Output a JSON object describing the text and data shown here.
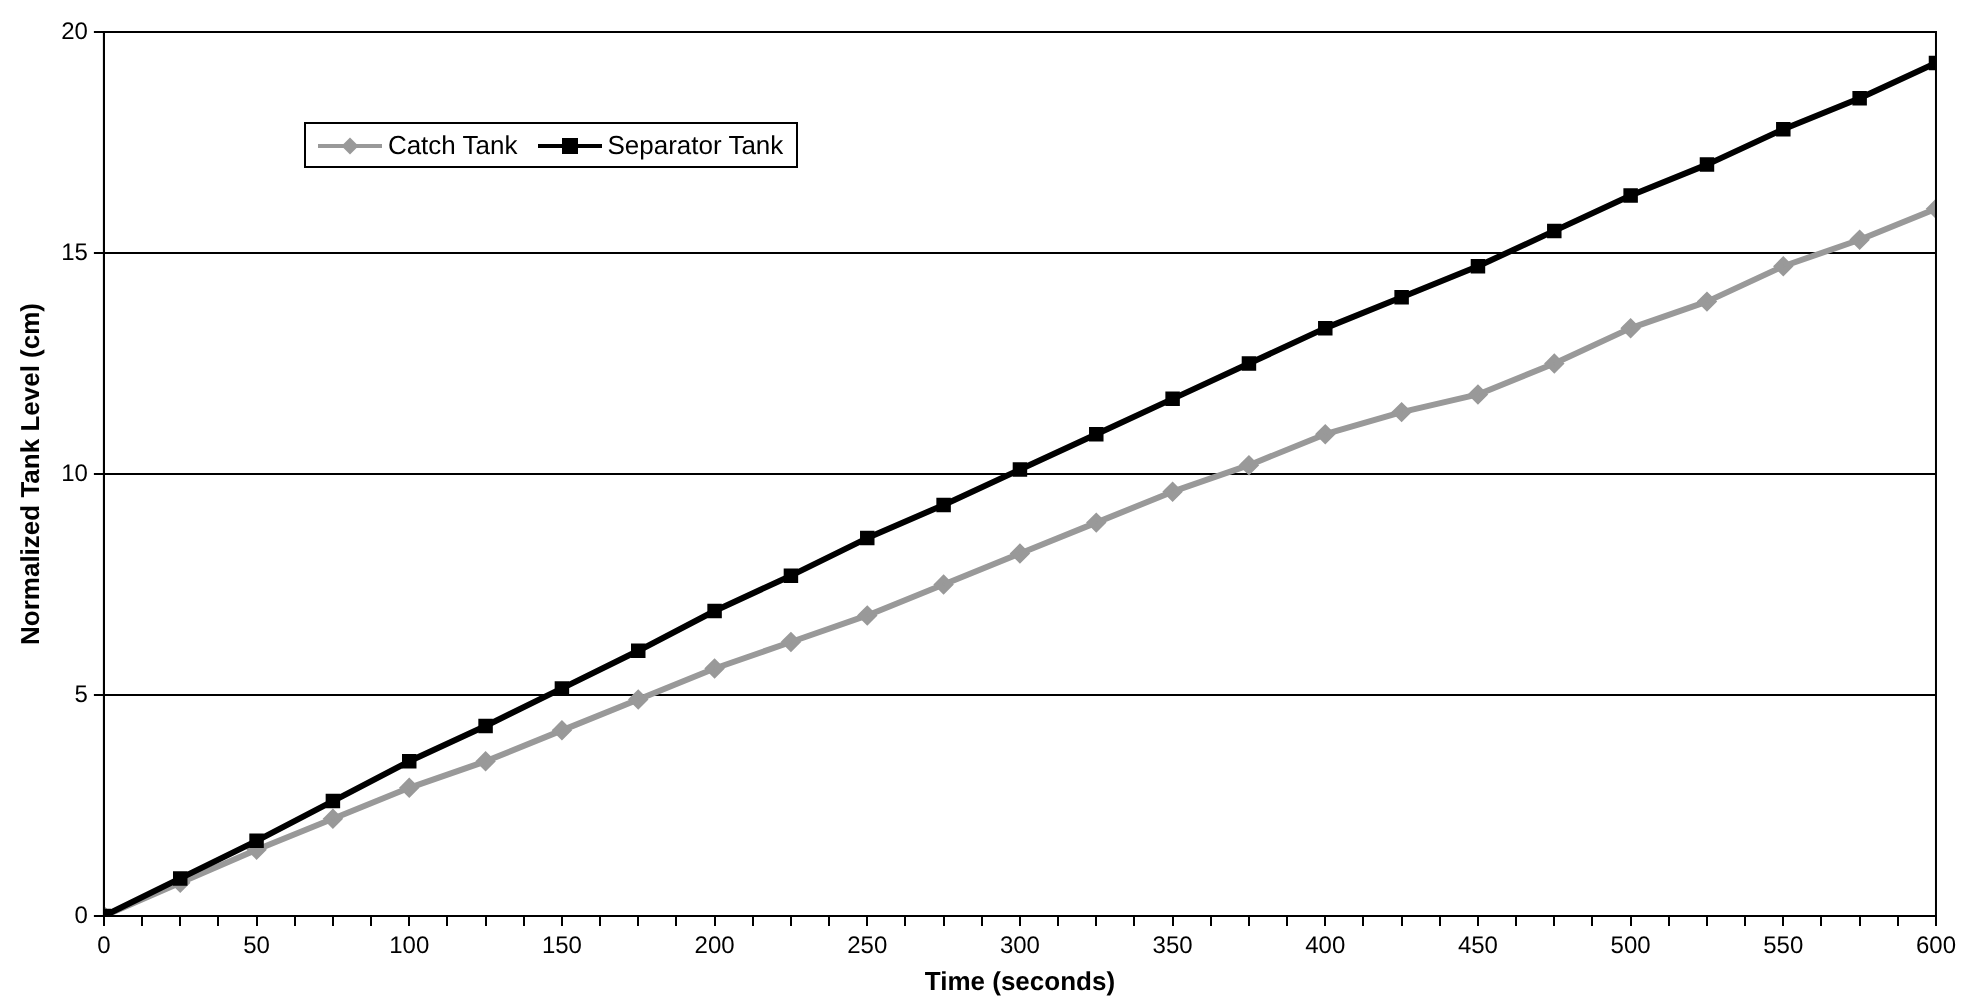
{
  "chart_data": {
    "type": "line",
    "xlabel": "Time (seconds)",
    "ylabel": "Normalized Tank Level (cm)",
    "x": [
      0,
      25,
      50,
      75,
      100,
      125,
      150,
      175,
      200,
      225,
      250,
      275,
      300,
      325,
      350,
      375,
      400,
      425,
      450,
      475,
      500,
      525,
      550,
      575,
      600
    ],
    "series": [
      {
        "name": "Catch Tank",
        "color": "#999999",
        "marker": "diamond",
        "values": [
          0,
          0.75,
          1.5,
          2.2,
          2.9,
          3.5,
          4.2,
          4.9,
          5.6,
          6.2,
          6.8,
          7.5,
          8.2,
          8.9,
          9.6,
          10.2,
          10.9,
          11.4,
          11.8,
          12.5,
          13.3,
          13.9,
          14.7,
          15.3,
          16.0
        ]
      },
      {
        "name": "Separator Tank",
        "color": "#000000",
        "marker": "square",
        "values": [
          0,
          0.85,
          1.7,
          2.6,
          3.5,
          4.3,
          5.15,
          6.0,
          6.9,
          7.7,
          8.55,
          9.3,
          10.1,
          10.9,
          11.7,
          12.5,
          13.3,
          14.0,
          14.7,
          15.5,
          16.3,
          17.0,
          17.8,
          18.5,
          19.3
        ]
      }
    ],
    "xlim": [
      0,
      600
    ],
    "xticks": [
      0,
      {
        "value": 12.5,
        "label": null
      },
      {
        "value": 25,
        "label": null
      },
      {
        "value": 37.5,
        "label": null
      },
      50,
      {
        "value": 62.5,
        "label": null
      },
      {
        "value": 75,
        "label": null
      },
      {
        "value": 87.5,
        "label": null
      },
      100,
      {
        "value": 112.5,
        "label": null
      },
      {
        "value": 125,
        "label": null
      },
      {
        "value": 137.5,
        "label": null
      },
      150,
      {
        "value": 162.5,
        "label": null
      },
      {
        "value": 175,
        "label": null
      },
      {
        "value": 187.5,
        "label": null
      },
      200,
      {
        "value": 212.5,
        "label": null
      },
      {
        "value": 225,
        "label": null
      },
      {
        "value": 237.5,
        "label": null
      },
      250,
      {
        "value": 262.5,
        "label": null
      },
      {
        "value": 275,
        "label": null
      },
      {
        "value": 287.5,
        "label": null
      },
      300,
      {
        "value": 312.5,
        "label": null
      },
      {
        "value": 325,
        "label": null
      },
      {
        "value": 337.5,
        "label": null
      },
      350,
      {
        "value": 362.5,
        "label": null
      },
      {
        "value": 375,
        "label": null
      },
      {
        "value": 387.5,
        "label": null
      },
      400,
      {
        "value": 412.5,
        "label": null
      },
      {
        "value": 425,
        "label": null
      },
      {
        "value": 437.5,
        "label": null
      },
      450,
      {
        "value": 462.5,
        "label": null
      },
      {
        "value": 475,
        "label": null
      },
      {
        "value": 487.5,
        "label": null
      },
      500,
      {
        "value": 512.5,
        "label": null
      },
      {
        "value": 525,
        "label": null
      },
      {
        "value": 537.5,
        "label": null
      },
      550,
      {
        "value": 562.5,
        "label": null
      },
      {
        "value": 575,
        "label": null
      },
      {
        "value": 587.5,
        "label": null
      },
      600
    ],
    "ylim": [
      0,
      20
    ],
    "yticks": [
      0,
      5,
      10,
      15,
      20
    ],
    "grid": "y",
    "legend": "top left"
  }
}
